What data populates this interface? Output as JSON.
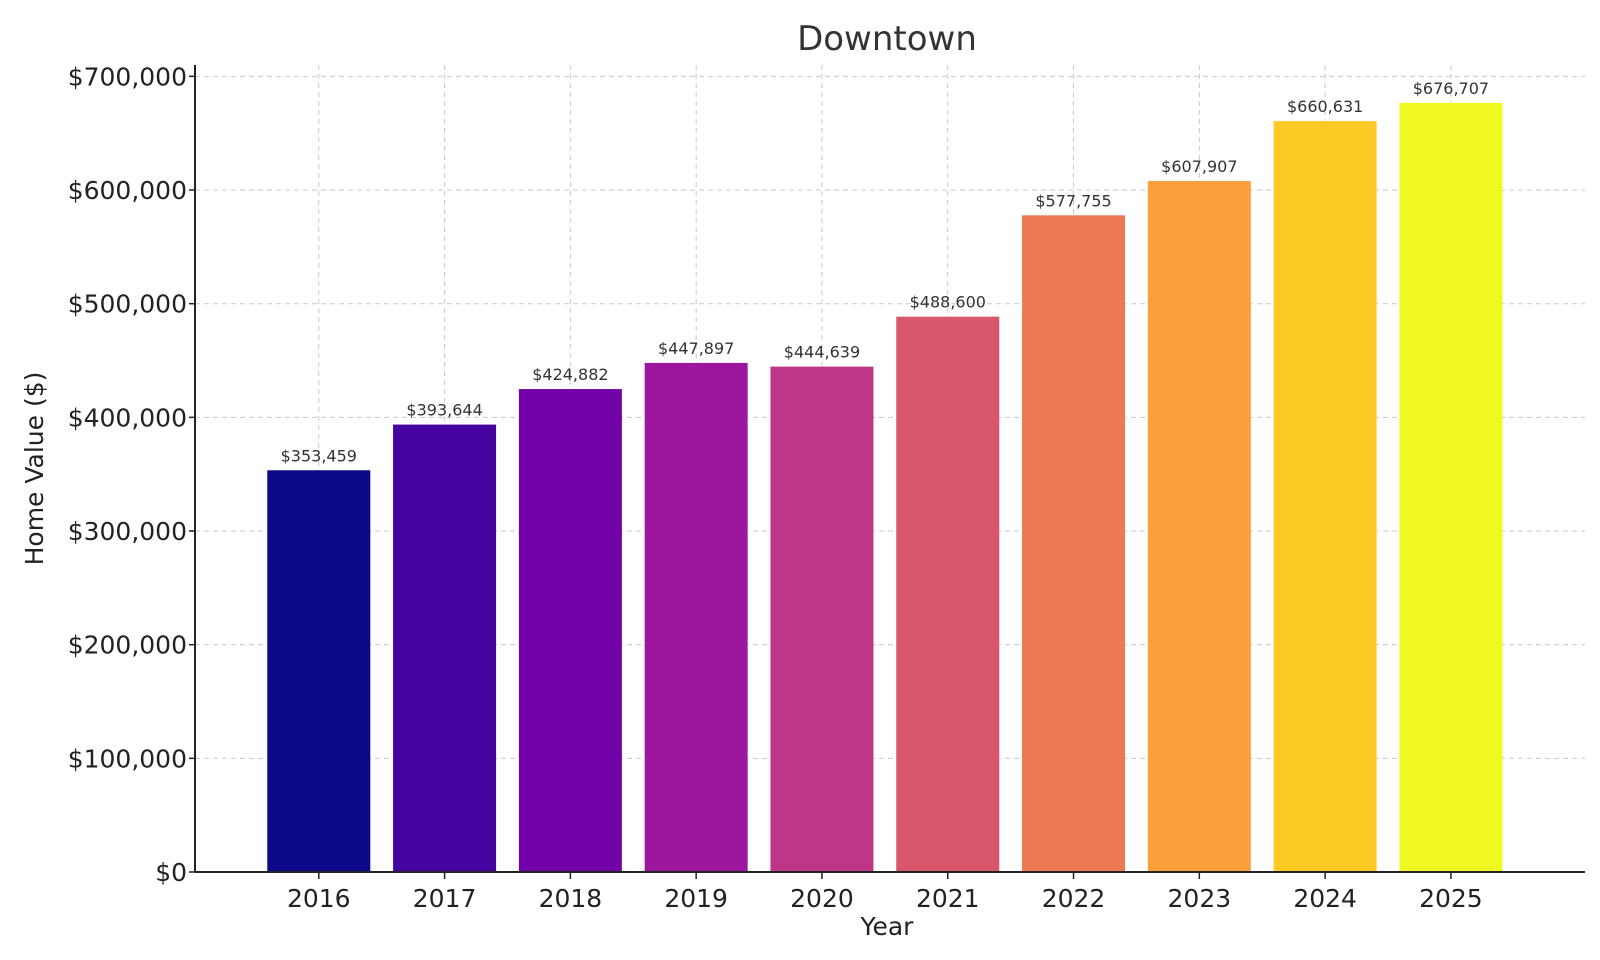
{
  "chart_data": {
    "type": "bar",
    "title": "Downtown",
    "xlabel": "Year",
    "ylabel": "Home Value ($)",
    "categories": [
      "2016",
      "2017",
      "2018",
      "2019",
      "2020",
      "2021",
      "2022",
      "2023",
      "2024",
      "2025"
    ],
    "values": [
      353459,
      393644,
      424882,
      447897,
      444639,
      488600,
      577755,
      607907,
      660631,
      676707
    ],
    "data_labels": [
      "$353,459",
      "$393,644",
      "$424,882",
      "$447,897",
      "$444,639",
      "$488,600",
      "$577,755",
      "$607,907",
      "$660,631",
      "$676,707"
    ],
    "bar_colors": [
      "#0d0887",
      "#46039f",
      "#7201a8",
      "#9c179e",
      "#bd3786",
      "#d8576b",
      "#ed7953",
      "#fb9f3a",
      "#fdca26",
      "#f0f921"
    ],
    "ylim": [
      0,
      710000
    ],
    "yticks": [
      0,
      100000,
      200000,
      300000,
      400000,
      500000,
      600000,
      700000
    ],
    "ytick_labels": [
      "$0",
      "$100,000",
      "$200,000",
      "$300,000",
      "$400,000",
      "$500,000",
      "$600,000",
      "$700,000"
    ],
    "grid": true,
    "legend": false
  }
}
